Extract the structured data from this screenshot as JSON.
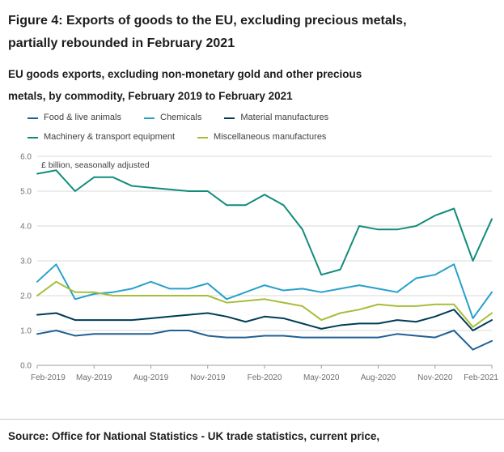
{
  "header": {
    "title_lines": [
      "Figure 4: Exports of goods to the EU, excluding precious metals,",
      "partially rebounded in February 2021"
    ],
    "subtitle_lines": [
      "EU goods exports, excluding non-monetary gold and other precious",
      "metals, by commodity, February 2019 to February 2021"
    ]
  },
  "footer": {
    "source": "Source: Office for National Statistics - UK trade statistics, current price,"
  },
  "chart_data": {
    "type": "line",
    "title": "Figure 4: Exports of goods to the EU, excluding precious metals, partially rebounded in February 2021",
    "subtitle": "EU goods exports, excluding non-monetary gold and other precious metals, by commodity, February 2019 to February 2021",
    "unit_label": "£ billion, seasonally adjusted",
    "ylim": [
      0,
      6
    ],
    "ytick_step": 1,
    "tick_every": 3,
    "grid": true,
    "legend_position": "top",
    "style": {
      "grid_color": "#d9d9d9",
      "axis_color": "#9c9c9c",
      "tick_color": "#707071",
      "label_color": "#414042"
    },
    "x": [
      "Feb-2019",
      "Mar-2019",
      "Apr-2019",
      "May-2019",
      "Jun-2019",
      "Jul-2019",
      "Aug-2019",
      "Sep-2019",
      "Oct-2019",
      "Nov-2019",
      "Dec-2019",
      "Jan-2020",
      "Feb-2020",
      "Mar-2020",
      "Apr-2020",
      "May-2020",
      "Jun-2020",
      "Jul-2020",
      "Aug-2020",
      "Sep-2020",
      "Oct-2020",
      "Nov-2020",
      "Dec-2020",
      "Jan-2021",
      "Feb-2021"
    ],
    "series": [
      {
        "name": "Food & live animals",
        "color": "#206095",
        "values": [
          0.9,
          1.0,
          0.85,
          0.9,
          0.9,
          0.9,
          0.9,
          1.0,
          1.0,
          0.85,
          0.8,
          0.8,
          0.85,
          0.85,
          0.8,
          0.8,
          0.8,
          0.8,
          0.8,
          0.9,
          0.85,
          0.8,
          1.0,
          0.45,
          0.7
        ]
      },
      {
        "name": "Chemicals",
        "color": "#27a0cc",
        "values": [
          2.4,
          2.9,
          1.9,
          2.05,
          2.1,
          2.2,
          2.4,
          2.2,
          2.2,
          2.35,
          1.9,
          2.1,
          2.3,
          2.15,
          2.2,
          2.1,
          2.2,
          2.3,
          2.2,
          2.1,
          2.5,
          2.6,
          2.9,
          1.35,
          2.1
        ]
      },
      {
        "name": "Material manufactures",
        "color": "#003c57",
        "values": [
          1.45,
          1.5,
          1.3,
          1.3,
          1.3,
          1.3,
          1.35,
          1.4,
          1.45,
          1.5,
          1.4,
          1.25,
          1.4,
          1.35,
          1.2,
          1.05,
          1.15,
          1.2,
          1.2,
          1.3,
          1.25,
          1.4,
          1.6,
          1.0,
          1.3
        ]
      },
      {
        "name": "Machinery & transport equipment",
        "color": "#118c7b",
        "values": [
          5.5,
          5.6,
          5.0,
          5.4,
          5.4,
          5.15,
          5.1,
          5.05,
          5.0,
          5.0,
          4.6,
          4.6,
          4.9,
          4.6,
          3.9,
          2.6,
          2.75,
          4.0,
          3.9,
          3.9,
          4.0,
          4.3,
          4.5,
          3.0,
          4.2
        ]
      },
      {
        "name": "Miscellaneous manufactures",
        "color": "#a8bd3a",
        "values": [
          2.0,
          2.4,
          2.1,
          2.1,
          2.0,
          2.0,
          2.0,
          2.0,
          2.0,
          2.0,
          1.8,
          1.85,
          1.9,
          1.8,
          1.7,
          1.3,
          1.5,
          1.6,
          1.75,
          1.7,
          1.7,
          1.75,
          1.75,
          1.1,
          1.5
        ]
      }
    ]
  }
}
